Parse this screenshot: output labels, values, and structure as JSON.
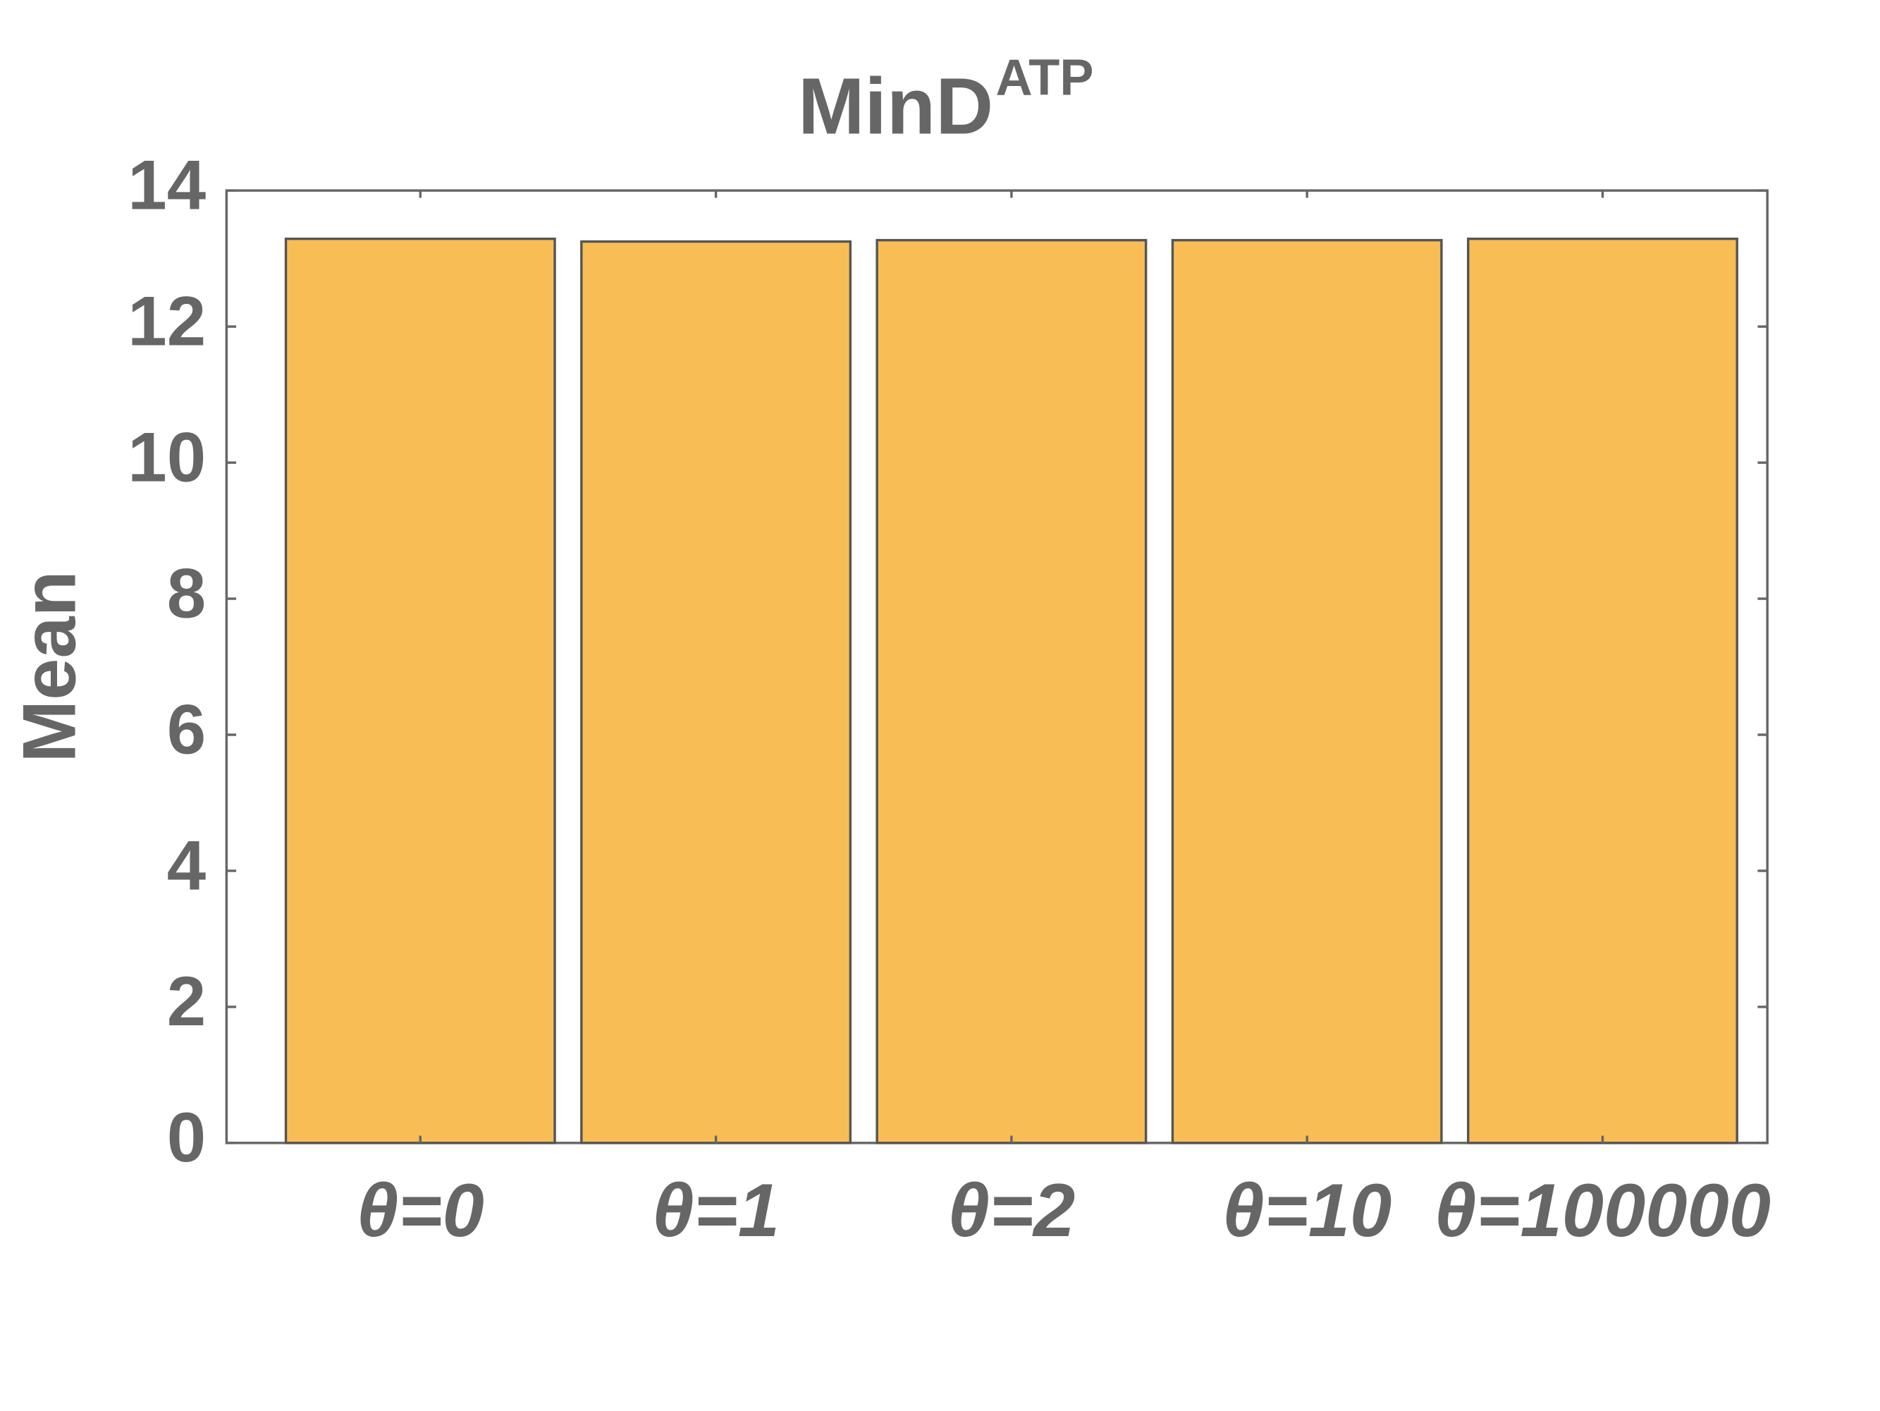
{
  "chart_data": {
    "type": "bar",
    "title": "MinD",
    "title_superscript": "ATP",
    "ylabel": "Mean",
    "categories": [
      "θ=0",
      "θ=1",
      "θ=2",
      "θ=10",
      "θ=100000"
    ],
    "values": [
      13.29,
      13.25,
      13.27,
      13.27,
      13.29
    ],
    "color": "#f8be55",
    "ylim": [
      0,
      14
    ],
    "yticks": [
      0,
      2,
      4,
      6,
      8,
      10,
      12,
      14
    ],
    "grid": false
  }
}
